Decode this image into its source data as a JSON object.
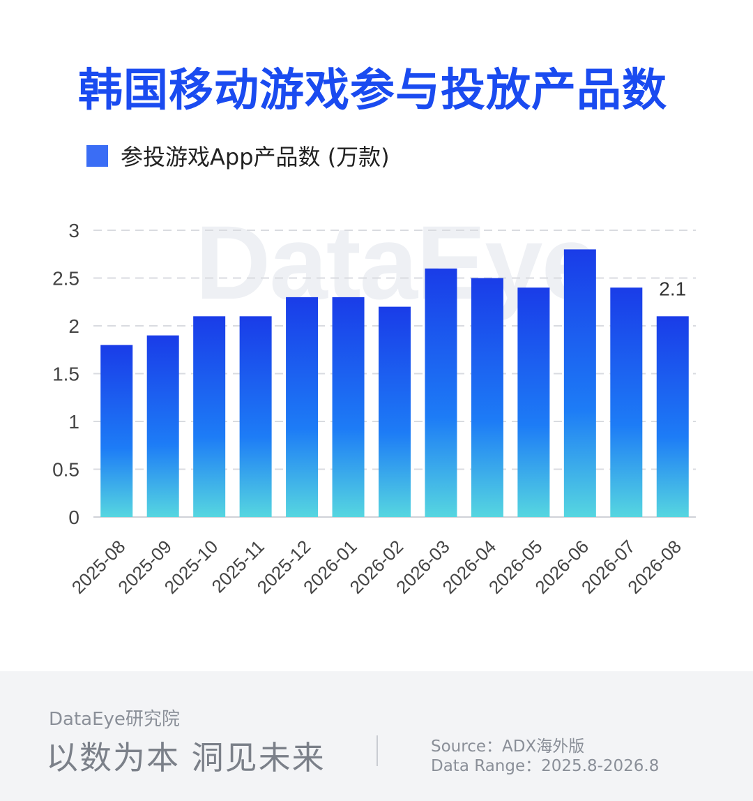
{
  "header": {
    "title": "韩国移动游戏参与投放产品数"
  },
  "watermark": "DataEye",
  "chart_data": {
    "type": "bar",
    "title": "韩国移动游戏参与投放产品数",
    "categories": [
      "2025-08",
      "2025-09",
      "2025-10",
      "2025-11",
      "2025-12",
      "2026-01",
      "2026-02",
      "2026-03",
      "2026-04",
      "2026-05",
      "2026-06",
      "2026-07",
      "2026-08"
    ],
    "series": [
      {
        "name": "参投游戏App产品数 (万款)",
        "values": [
          1.8,
          1.9,
          2.1,
          2.1,
          2.3,
          2.3,
          2.2,
          2.6,
          2.5,
          2.4,
          2.8,
          2.4,
          2.1
        ]
      }
    ],
    "yticks": [
      "0",
      "0.5",
      "1",
      "1.5",
      "2",
      "2.5",
      "3"
    ],
    "ylim": [
      0,
      3
    ],
    "data_labels": [
      {
        "category": "2026-08",
        "text": "2.1"
      }
    ],
    "grid": "horizontal dashed",
    "legend": "top-left",
    "colors": {
      "bar_top": "#1a3ce8",
      "bar_mid": "#1d7cf6",
      "bar_bottom": "#56d6e0",
      "legend": "#3a6df5",
      "grid": "#d9dbe0"
    }
  },
  "footer": {
    "org": "DataEye研究院",
    "slogan": "以数为本 洞见未来",
    "source": "Source：ADX海外版",
    "range": "Data Range：2025.8-2026.8"
  }
}
